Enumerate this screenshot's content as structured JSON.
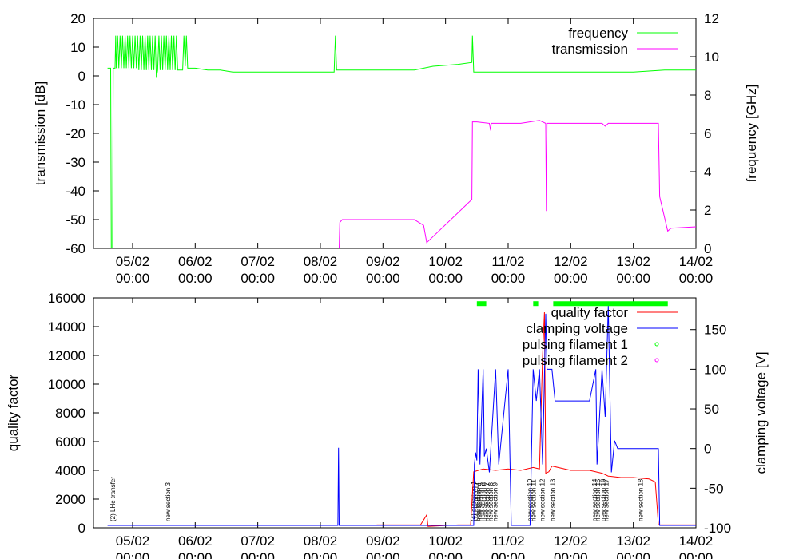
{
  "chart_data": [
    {
      "type": "line",
      "ylabel": "transmission [dB]",
      "y2label": "frequency [GHz]",
      "xlim": [
        "04/02 09:00",
        "14/02 00:00"
      ],
      "ylim": [
        -60,
        20
      ],
      "y2lim": [
        0,
        12
      ],
      "xticks": [
        {
          "day": 1,
          "date": "05/02",
          "time": "00:00"
        },
        {
          "day": 2,
          "date": "06/02",
          "time": "00:00"
        },
        {
          "day": 3,
          "date": "07/02",
          "time": "00:00"
        },
        {
          "day": 4,
          "date": "08/02",
          "time": "00:00"
        },
        {
          "day": 5,
          "date": "09/02",
          "time": "00:00"
        },
        {
          "day": 6,
          "date": "10/02",
          "time": "00:00"
        },
        {
          "day": 7,
          "date": "11/02",
          "time": "00:00"
        },
        {
          "day": 8,
          "date": "12/02",
          "time": "00:00"
        },
        {
          "day": 9,
          "date": "13/02",
          "time": "00:00"
        },
        {
          "day": 10,
          "date": "14/02",
          "time": "00:00"
        }
      ],
      "yticks": [
        -60,
        -50,
        -40,
        -30,
        -20,
        -10,
        0,
        10,
        20
      ],
      "y2ticks": [
        0,
        2,
        4,
        6,
        8,
        10,
        12
      ],
      "legend": "top-right",
      "series": [
        {
          "name": "frequency",
          "axis": "y2",
          "color": "#00ff00",
          "points": [
            [
              0.6,
              9.4
            ],
            [
              0.65,
              9.4
            ],
            [
              0.66,
              0
            ],
            [
              0.68,
              0
            ],
            [
              0.69,
              9.4
            ],
            [
              0.72,
              9.4
            ],
            [
              0.73,
              11.1
            ],
            [
              0.74,
              9.4
            ],
            [
              0.76,
              11.1
            ],
            [
              0.78,
              9.4
            ],
            [
              0.8,
              11.1
            ],
            [
              0.82,
              9.4
            ],
            [
              0.84,
              11.1
            ],
            [
              0.86,
              9.4
            ],
            [
              0.88,
              11.1
            ],
            [
              0.9,
              9.4
            ],
            [
              0.92,
              11.1
            ],
            [
              0.94,
              9.4
            ],
            [
              0.96,
              11.1
            ],
            [
              0.98,
              9.4
            ],
            [
              1.0,
              11.1
            ],
            [
              1.02,
              9.4
            ],
            [
              1.04,
              11.1
            ],
            [
              1.06,
              9.4
            ],
            [
              1.08,
              11.1
            ],
            [
              1.1,
              9.3
            ],
            [
              1.12,
              11.1
            ],
            [
              1.14,
              9.3
            ],
            [
              1.16,
              11.1
            ],
            [
              1.18,
              9.3
            ],
            [
              1.2,
              11.1
            ],
            [
              1.22,
              9.3
            ],
            [
              1.24,
              11.1
            ],
            [
              1.26,
              9.3
            ],
            [
              1.28,
              11.1
            ],
            [
              1.3,
              9.3
            ],
            [
              1.32,
              11.1
            ],
            [
              1.34,
              9.3
            ],
            [
              1.36,
              11.1
            ],
            [
              1.38,
              8.9
            ],
            [
              1.4,
              9.3
            ],
            [
              1.42,
              11.1
            ],
            [
              1.44,
              9.3
            ],
            [
              1.46,
              11.1
            ],
            [
              1.48,
              9.3
            ],
            [
              1.5,
              11.1
            ],
            [
              1.52,
              9.3
            ],
            [
              1.54,
              11.1
            ],
            [
              1.56,
              9.3
            ],
            [
              1.58,
              11.1
            ],
            [
              1.6,
              9.3
            ],
            [
              1.62,
              11.1
            ],
            [
              1.64,
              9.3
            ],
            [
              1.66,
              11.1
            ],
            [
              1.68,
              9.3
            ],
            [
              1.7,
              11.1
            ],
            [
              1.72,
              9.3
            ],
            [
              1.74,
              9.3
            ],
            [
              1.78,
              9.3
            ],
            [
              1.8,
              9.3
            ],
            [
              1.82,
              11.1
            ],
            [
              1.84,
              9.5
            ],
            [
              1.86,
              11.1
            ],
            [
              1.88,
              9.4
            ],
            [
              1.9,
              9.4
            ],
            [
              2.0,
              9.4
            ],
            [
              2.2,
              9.3
            ],
            [
              2.4,
              9.3
            ],
            [
              2.6,
              9.2
            ],
            [
              3.0,
              9.2
            ],
            [
              3.4,
              9.2
            ],
            [
              3.8,
              9.2
            ],
            [
              4.22,
              9.2
            ],
            [
              4.24,
              11.1
            ],
            [
              4.26,
              9.3
            ],
            [
              4.5,
              9.3
            ],
            [
              5.0,
              9.3
            ],
            [
              5.5,
              9.3
            ],
            [
              5.8,
              9.5
            ],
            [
              6.2,
              9.6
            ],
            [
              6.42,
              9.7
            ],
            [
              6.43,
              11.1
            ],
            [
              6.45,
              9.2
            ],
            [
              6.6,
              9.2
            ],
            [
              7.0,
              9.2
            ],
            [
              7.5,
              9.2
            ],
            [
              8.0,
              9.2
            ],
            [
              8.5,
              9.2
            ],
            [
              9.0,
              9.2
            ],
            [
              9.5,
              9.3
            ],
            [
              10.0,
              9.3
            ]
          ]
        },
        {
          "name": "transmission",
          "axis": "y",
          "color": "#ff00ff",
          "points": [
            [
              4.3,
              -60
            ],
            [
              4.31,
              -51
            ],
            [
              4.35,
              -50
            ],
            [
              5.0,
              -50
            ],
            [
              5.5,
              -50
            ],
            [
              5.65,
              -52
            ],
            [
              5.7,
              -58
            ],
            [
              6.42,
              -43
            ],
            [
              6.43,
              -16
            ],
            [
              6.5,
              -16
            ],
            [
              6.7,
              -16.5
            ],
            [
              6.72,
              -19
            ],
            [
              6.73,
              -16.5
            ],
            [
              7.2,
              -16.5
            ],
            [
              7.5,
              -15.5
            ],
            [
              7.6,
              -16.5
            ],
            [
              7.61,
              -47
            ],
            [
              7.62,
              -16.5
            ],
            [
              8.0,
              -16.5
            ],
            [
              8.5,
              -16.5
            ],
            [
              8.55,
              -17.5
            ],
            [
              8.6,
              -16.5
            ],
            [
              9.0,
              -16.5
            ],
            [
              9.4,
              -16.5
            ],
            [
              9.42,
              -42
            ],
            [
              9.55,
              -54
            ],
            [
              9.6,
              -53
            ],
            [
              10.0,
              -52.5
            ]
          ]
        }
      ]
    },
    {
      "type": "line",
      "ylabel": "quality factor",
      "y2label": "clamping voltage [V]",
      "xlim": [
        "04/02 09:00",
        "14/02 00:00"
      ],
      "ylim": [
        0,
        16000
      ],
      "y2lim": [
        -100,
        190
      ],
      "xticks": [
        {
          "day": 1,
          "date": "05/02",
          "time": "00:00"
        },
        {
          "day": 2,
          "date": "06/02",
          "time": "00:00"
        },
        {
          "day": 3,
          "date": "07/02",
          "time": "00:00"
        },
        {
          "day": 4,
          "date": "08/02",
          "time": "00:00"
        },
        {
          "day": 5,
          "date": "09/02",
          "time": "00:00"
        },
        {
          "day": 6,
          "date": "10/02",
          "time": "00:00"
        },
        {
          "day": 7,
          "date": "11/02",
          "time": "00:00"
        },
        {
          "day": 8,
          "date": "12/02",
          "time": "00:00"
        },
        {
          "day": 9,
          "date": "13/02",
          "time": "00:00"
        },
        {
          "day": 10,
          "date": "14/02",
          "time": "00:00"
        }
      ],
      "yticks": [
        0,
        2000,
        4000,
        6000,
        8000,
        10000,
        12000,
        14000,
        16000
      ],
      "y2ticks": [
        -100,
        -50,
        0,
        50,
        100,
        150
      ],
      "legend": "top-right",
      "series": [
        {
          "name": "quality factor",
          "axis": "y",
          "color": "#ff0000",
          "points": [
            [
              4.9,
              200
            ],
            [
              5.6,
              200
            ],
            [
              5.7,
              900
            ],
            [
              5.72,
              100
            ],
            [
              6.2,
              200
            ],
            [
              6.4,
              200
            ],
            [
              6.45,
              3900
            ],
            [
              6.6,
              4100
            ],
            [
              6.8,
              4000
            ],
            [
              7.0,
              4100
            ],
            [
              7.2,
              4000
            ],
            [
              7.4,
              4200
            ],
            [
              7.5,
              4100
            ],
            [
              7.55,
              12000
            ],
            [
              7.58,
              15000
            ],
            [
              7.6,
              3800
            ],
            [
              7.65,
              3900
            ],
            [
              7.7,
              4300
            ],
            [
              8.0,
              4000
            ],
            [
              8.3,
              4000
            ],
            [
              8.5,
              3800
            ],
            [
              8.6,
              3600
            ],
            [
              8.8,
              3500
            ],
            [
              9.0,
              3500
            ],
            [
              9.25,
              3400
            ],
            [
              9.35,
              3200
            ],
            [
              9.38,
              1500
            ],
            [
              9.4,
              200
            ],
            [
              9.6,
              200
            ],
            [
              10.0,
              200
            ]
          ]
        },
        {
          "name": "clamping voltage",
          "axis": "y2",
          "color": "#0000ff",
          "points": [
            [
              0.6,
              -97
            ],
            [
              4.28,
              -97
            ],
            [
              4.29,
              1
            ],
            [
              4.3,
              -97
            ],
            [
              6.45,
              -97
            ],
            [
              6.46,
              -20
            ],
            [
              6.48,
              -5
            ],
            [
              6.5,
              -15
            ],
            [
              6.52,
              100
            ],
            [
              6.55,
              -20
            ],
            [
              6.6,
              100
            ],
            [
              6.62,
              -10
            ],
            [
              6.65,
              0
            ],
            [
              6.7,
              -30
            ],
            [
              6.8,
              100
            ],
            [
              6.85,
              -20
            ],
            [
              7.0,
              100
            ],
            [
              7.05,
              -97
            ],
            [
              7.35,
              -97
            ],
            [
              7.4,
              100
            ],
            [
              7.45,
              60
            ],
            [
              7.5,
              100
            ],
            [
              7.55,
              -20
            ],
            [
              7.6,
              170
            ],
            [
              7.62,
              100
            ],
            [
              7.7,
              100
            ],
            [
              7.75,
              60
            ],
            [
              8.3,
              60
            ],
            [
              8.4,
              100
            ],
            [
              8.42,
              -20
            ],
            [
              8.5,
              100
            ],
            [
              8.55,
              40
            ],
            [
              8.6,
              180
            ],
            [
              8.65,
              -30
            ],
            [
              8.7,
              10
            ],
            [
              8.75,
              0
            ],
            [
              9.0,
              0
            ],
            [
              9.4,
              0
            ],
            [
              9.42,
              -97
            ],
            [
              10.0,
              -97
            ]
          ]
        },
        {
          "name": "pulsing filament 1",
          "axis": "y",
          "color": "#00ff00",
          "ranges": [
            [
              6.5,
              6.65
            ],
            [
              7.4,
              7.48
            ],
            [
              7.72,
              9.55
            ]
          ],
          "level": 15600
        },
        {
          "name": "pulsing filament 2",
          "axis": "y",
          "color": "#ff00ff",
          "ranges": []
        }
      ],
      "annotations": [
        {
          "x": 0.72,
          "text": "(2) LHe transfer"
        },
        {
          "x": 1.6,
          "text": "new section 3"
        },
        {
          "x": 6.48,
          "text": "(4) elevation 1"
        },
        {
          "x": 6.52,
          "text": "(1) heating 1"
        },
        {
          "x": 6.56,
          "text": "new section 4"
        },
        {
          "x": 6.6,
          "text": "new section 5"
        },
        {
          "x": 6.65,
          "text": "new section 6"
        },
        {
          "x": 6.7,
          "text": "new section 7"
        },
        {
          "x": 6.76,
          "text": "new section 8"
        },
        {
          "x": 6.83,
          "text": "new section 9"
        },
        {
          "x": 7.38,
          "text": "new section 10"
        },
        {
          "x": 7.44,
          "text": "new section 11"
        },
        {
          "x": 7.58,
          "text": "new section 12"
        },
        {
          "x": 7.75,
          "text": "new section 13"
        },
        {
          "x": 8.42,
          "text": "new section 14"
        },
        {
          "x": 8.47,
          "text": "new section 15"
        },
        {
          "x": 8.55,
          "text": "new section 16"
        },
        {
          "x": 8.6,
          "text": "new section 17"
        },
        {
          "x": 9.15,
          "text": "new section 18"
        }
      ]
    }
  ]
}
